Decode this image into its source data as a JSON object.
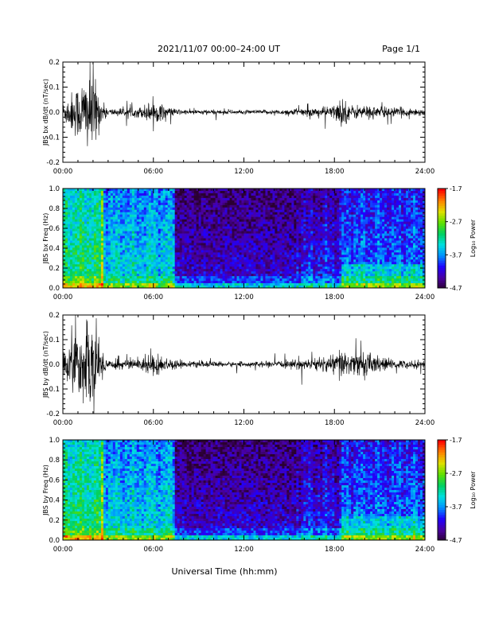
{
  "header": {
    "title": "2021/11/07  00:00–24:00 UT",
    "page": "Page 1/1"
  },
  "x_axis_label": "Universal Time (hh:mm)",
  "colors": {
    "trace": "#000000",
    "axis": "#000000",
    "colormap": [
      "#2a0030",
      "#4a00a0",
      "#2000ff",
      "#0090ff",
      "#00e0e0",
      "#00d060",
      "#60e000",
      "#e0e000",
      "#ff8000",
      "#ff0000"
    ]
  },
  "colorbar": {
    "label": "Log₁₀ Power",
    "ticks": [
      "-1.7",
      "-2.7",
      "-3.7",
      "-4.7"
    ],
    "range": [
      -4.7,
      -1.7
    ]
  },
  "chart_data": [
    {
      "type": "line",
      "ylabel": "JBS bx dB/dt (nT/sec)",
      "xticks": [
        "00:00",
        "06:00",
        "12:00",
        "18:00",
        "24:00"
      ],
      "yticks": [
        "0.2",
        "0.1",
        "0.0",
        "-0.1",
        "-0.2"
      ],
      "xlim": [
        0,
        24
      ],
      "ylim": [
        -0.2,
        0.2
      ],
      "activity_hours": [
        0,
        1,
        2,
        2.5,
        3,
        5,
        6,
        7,
        8,
        10,
        12,
        14,
        15.5,
        17,
        18,
        18.5,
        19,
        20,
        21,
        22,
        24
      ],
      "activity_amplitude": [
        0.04,
        0.12,
        0.2,
        0.05,
        0.015,
        0.02,
        0.05,
        0.02,
        0.01,
        0.01,
        0.008,
        0.01,
        0.015,
        0.02,
        0.03,
        0.07,
        0.03,
        0.03,
        0.025,
        0.02,
        0.015
      ]
    },
    {
      "type": "heatmap",
      "ylabel": "JBS bx Freq (Hz)",
      "xticks": [
        "00:00",
        "06:00",
        "12:00",
        "18:00",
        "24:00"
      ],
      "yticks": [
        "1.0",
        "0.8",
        "0.6",
        "0.4",
        "0.2",
        "0.0"
      ],
      "xlim": [
        0,
        24
      ],
      "ylim": [
        0,
        1.0
      ],
      "zlim": [
        -4.7,
        -1.7
      ]
    },
    {
      "type": "line",
      "ylabel": "JBS by dB/dt (nT/sec)",
      "xticks": [
        "00:00",
        "06:00",
        "12:00",
        "18:00",
        "24:00"
      ],
      "yticks": [
        "0.2",
        "0.1",
        "0.0",
        "-0.1",
        "-0.2"
      ],
      "xlim": [
        0,
        24
      ],
      "ylim": [
        -0.2,
        0.2
      ],
      "activity_hours": [
        0,
        1,
        2,
        2.5,
        3,
        5,
        6,
        7,
        8,
        10,
        12,
        14,
        15.5,
        17,
        18,
        18.5,
        19,
        20,
        21,
        22,
        24
      ],
      "activity_amplitude": [
        0.05,
        0.14,
        0.2,
        0.08,
        0.02,
        0.025,
        0.05,
        0.025,
        0.012,
        0.012,
        0.01,
        0.012,
        0.02,
        0.03,
        0.04,
        0.08,
        0.04,
        0.06,
        0.03,
        0.02,
        0.015
      ]
    },
    {
      "type": "heatmap",
      "ylabel": "JBS by Freq (Hz)",
      "xticks": [
        "00:00",
        "06:00",
        "12:00",
        "18:00",
        "24:00"
      ],
      "yticks": [
        "1.0",
        "0.8",
        "0.6",
        "0.4",
        "0.2",
        "0.0"
      ],
      "xlim": [
        0,
        24
      ],
      "ylim": [
        0,
        1.0
      ],
      "zlim": [
        -4.7,
        -1.7
      ]
    }
  ]
}
